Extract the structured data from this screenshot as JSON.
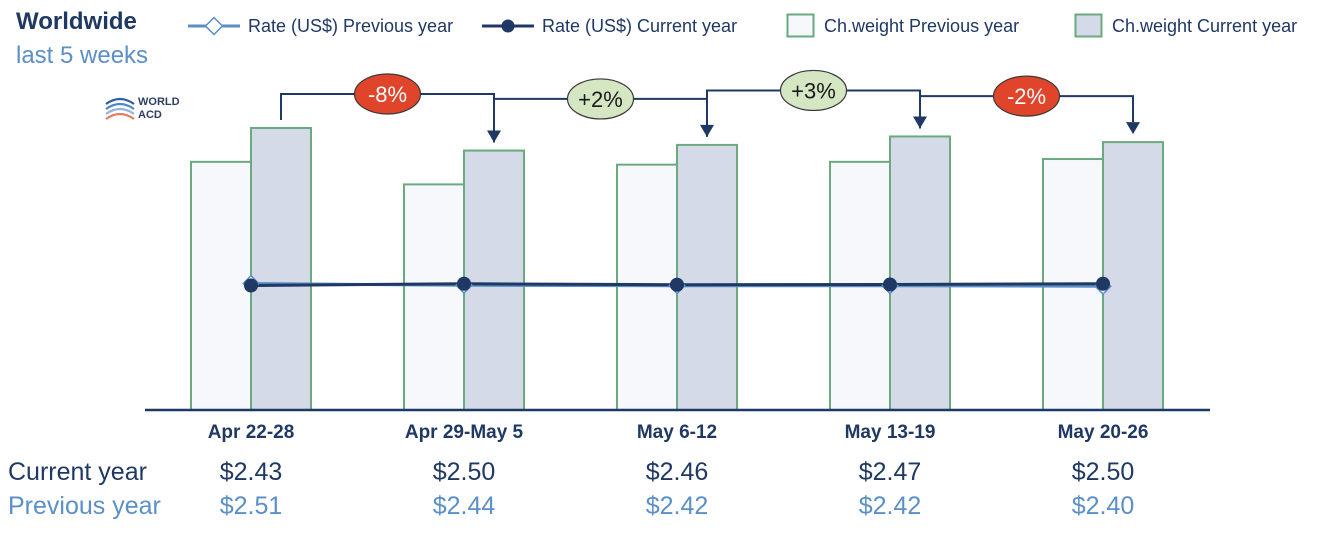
{
  "header": {
    "title": "Worldwide",
    "subtitle": "last 5 weeks"
  },
  "logo": {
    "line1": "WORLD",
    "line2": "ACD"
  },
  "legend": [
    {
      "label": "Rate (US$) Previous year",
      "kind": "line-diamond",
      "color": "#5b8fc7"
    },
    {
      "label": "Rate (US$) Current year",
      "kind": "line-dot",
      "color": "#1f3864"
    },
    {
      "label": "Ch.weight Previous year",
      "kind": "bar",
      "fill": "#f7f8fc",
      "stroke": "#6aaa7e"
    },
    {
      "label": "Ch.weight Current year",
      "kind": "bar",
      "fill": "#d5dae8",
      "stroke": "#6aaa7e"
    }
  ],
  "table": {
    "current_label": "Current year",
    "previous_label": "Previous year"
  },
  "colors": {
    "navy": "#1f3864",
    "light_blue": "#5b8fc7",
    "bar_border": "#6aaa7e",
    "bar_prev_fill": "#f7f8fc",
    "bar_cur_fill": "#d5dae8",
    "negative_badge": "#e0452b",
    "positive_badge": "#d5e6c3"
  },
  "chart_data": {
    "type": "bar",
    "title": "Worldwide",
    "subtitle": "last 5 weeks",
    "categories": [
      "Apr 22-28",
      "Apr 29-May 5",
      "May 6-12",
      "May 13-19",
      "May 20-26"
    ],
    "ylim": [
      0,
      100
    ],
    "series": [
      {
        "name": "Ch.weight Previous year",
        "type": "bar",
        "values": [
          88,
          80,
          87,
          88,
          89
        ]
      },
      {
        "name": "Ch.weight Current year",
        "type": "bar",
        "values": [
          100,
          92,
          94,
          97,
          95
        ]
      },
      {
        "name": "Rate (US$) Previous year",
        "type": "line",
        "values": [
          2.51,
          2.44,
          2.42,
          2.42,
          2.4
        ],
        "labels": [
          "$2.51",
          "$2.44",
          "$2.42",
          "$2.42",
          "$2.40"
        ]
      },
      {
        "name": "Rate (US$) Current year",
        "type": "line",
        "values": [
          2.43,
          2.5,
          2.46,
          2.47,
          2.5
        ],
        "labels": [
          "$2.43",
          "$2.50",
          "$2.46",
          "$2.47",
          "$2.50"
        ]
      }
    ],
    "week_changes": [
      {
        "label": "-8%",
        "sign": "negative"
      },
      {
        "label": "+2%",
        "sign": "positive"
      },
      {
        "label": "+3%",
        "sign": "positive"
      },
      {
        "label": "-2%",
        "sign": "negative"
      }
    ],
    "grid": false,
    "legend_position": "top"
  }
}
